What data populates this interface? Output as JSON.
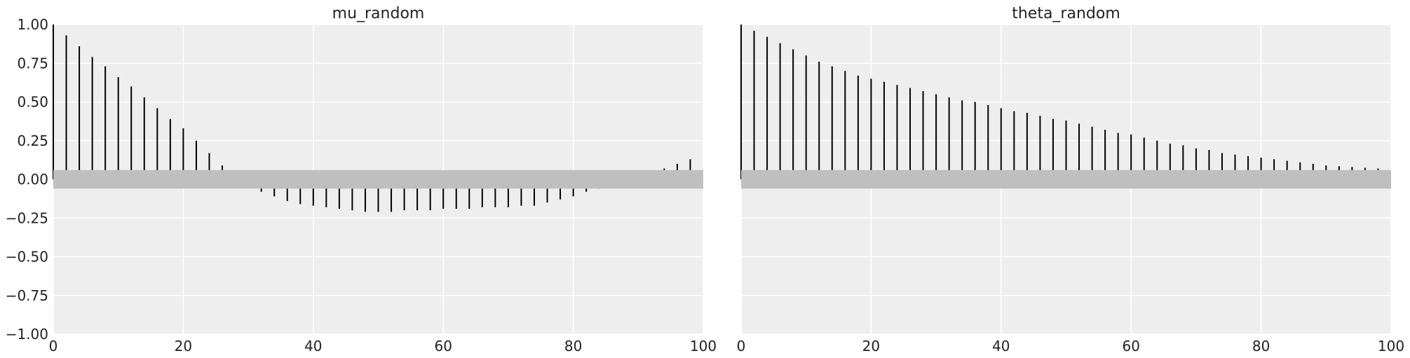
{
  "chart_data": [
    {
      "type": "bar",
      "subtype": "autocorrelation-stem",
      "title": "mu_random",
      "xlim": [
        0,
        100
      ],
      "ylim": [
        -1.0,
        1.0
      ],
      "xticks": [
        0,
        20,
        40,
        60,
        80,
        100
      ],
      "xtick_labels": [
        "0",
        "20",
        "40",
        "60",
        "80",
        "100"
      ],
      "yticks": [
        1.0,
        0.75,
        0.5,
        0.25,
        0.0,
        -0.25,
        -0.5,
        -0.75,
        -1.0
      ],
      "ytick_labels": [
        "1.00",
        "0.75",
        "0.50",
        "0.25",
        "0.00",
        "−0.25",
        "−0.50",
        "−0.75",
        "−1.00"
      ],
      "grid": true,
      "confidence_band": [
        -0.06,
        0.06
      ],
      "x": [
        0,
        2,
        4,
        6,
        8,
        10,
        12,
        14,
        16,
        18,
        20,
        22,
        24,
        26,
        28,
        30,
        32,
        34,
        36,
        38,
        40,
        42,
        44,
        46,
        48,
        50,
        52,
        54,
        56,
        58,
        60,
        62,
        64,
        66,
        68,
        70,
        72,
        74,
        76,
        78,
        80,
        82,
        84,
        86,
        88,
        90,
        92,
        94,
        96,
        98
      ],
      "values": [
        1.0,
        0.93,
        0.86,
        0.79,
        0.73,
        0.66,
        0.6,
        0.53,
        0.46,
        0.39,
        0.33,
        0.25,
        0.17,
        0.09,
        0.03,
        -0.03,
        -0.08,
        -0.11,
        -0.14,
        -0.16,
        -0.17,
        -0.18,
        -0.19,
        -0.2,
        -0.21,
        -0.21,
        -0.21,
        -0.2,
        -0.2,
        -0.2,
        -0.19,
        -0.19,
        -0.19,
        -0.18,
        -0.18,
        -0.18,
        -0.17,
        -0.17,
        -0.15,
        -0.13,
        -0.11,
        -0.08,
        -0.06,
        -0.03,
        -0.01,
        0.01,
        0.04,
        0.07,
        0.1,
        0.13
      ]
    },
    {
      "type": "bar",
      "subtype": "autocorrelation-stem",
      "title": "theta_random",
      "xlim": [
        0,
        100
      ],
      "ylim": [
        -1.0,
        1.0
      ],
      "xticks": [
        0,
        20,
        40,
        60,
        80,
        100
      ],
      "xtick_labels": [
        "0",
        "20",
        "40",
        "60",
        "80",
        "100"
      ],
      "grid": true,
      "confidence_band": [
        -0.06,
        0.06
      ],
      "x": [
        0,
        2,
        4,
        6,
        8,
        10,
        12,
        14,
        16,
        18,
        20,
        22,
        24,
        26,
        28,
        30,
        32,
        34,
        36,
        38,
        40,
        42,
        44,
        46,
        48,
        50,
        52,
        54,
        56,
        58,
        60,
        62,
        64,
        66,
        68,
        70,
        72,
        74,
        76,
        78,
        80,
        82,
        84,
        86,
        88,
        90,
        92,
        94,
        96,
        98
      ],
      "values": [
        1.0,
        0.96,
        0.92,
        0.88,
        0.84,
        0.8,
        0.76,
        0.73,
        0.7,
        0.67,
        0.65,
        0.63,
        0.61,
        0.59,
        0.57,
        0.55,
        0.53,
        0.51,
        0.5,
        0.48,
        0.46,
        0.44,
        0.43,
        0.41,
        0.39,
        0.38,
        0.36,
        0.34,
        0.32,
        0.3,
        0.29,
        0.27,
        0.25,
        0.23,
        0.22,
        0.2,
        0.19,
        0.17,
        0.16,
        0.15,
        0.14,
        0.13,
        0.12,
        0.11,
        0.1,
        0.09,
        0.085,
        0.08,
        0.075,
        0.07
      ]
    }
  ]
}
